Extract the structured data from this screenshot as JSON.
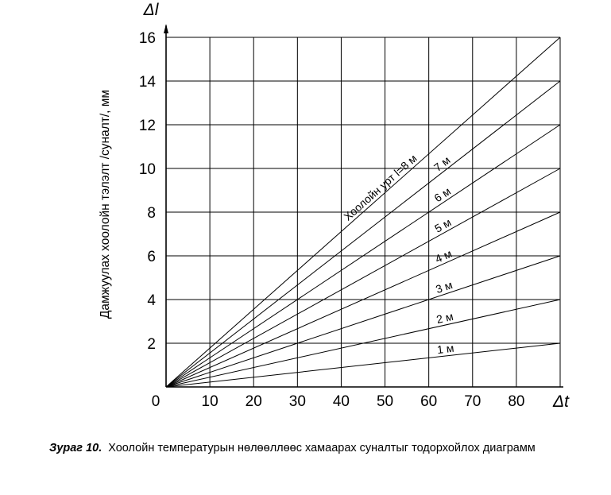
{
  "chart_data": {
    "type": "line",
    "title": "",
    "ylabel": "Дамжуулах хоолойн тэлэлт /суналт/, мм",
    "y_symbol": "Δl",
    "x_symbol": "Δt",
    "origin_label": "0",
    "xlim": [
      0,
      90
    ],
    "ylim": [
      0,
      16
    ],
    "x_ticks": [
      10,
      20,
      30,
      40,
      50,
      60,
      70,
      80
    ],
    "y_ticks": [
      2,
      4,
      6,
      8,
      10,
      12,
      14,
      16
    ],
    "grid": true,
    "legend": "none",
    "series": [
      {
        "label": "1 м",
        "x": [
          0,
          90
        ],
        "y": [
          0,
          2
        ]
      },
      {
        "label": "2 м",
        "x": [
          0,
          90
        ],
        "y": [
          0,
          4
        ]
      },
      {
        "label": "3 м",
        "x": [
          0,
          90
        ],
        "y": [
          0,
          6
        ]
      },
      {
        "label": "4 м",
        "x": [
          0,
          90
        ],
        "y": [
          0,
          8
        ]
      },
      {
        "label": "5 м",
        "x": [
          0,
          90
        ],
        "y": [
          0,
          10
        ]
      },
      {
        "label": "6 м",
        "x": [
          0,
          90
        ],
        "y": [
          0,
          12
        ]
      },
      {
        "label": "7 м",
        "x": [
          0,
          90
        ],
        "y": [
          0,
          14
        ]
      },
      {
        "label": "Хоолойн урт l=8 м",
        "x": [
          0,
          90
        ],
        "y": [
          0,
          16
        ]
      }
    ]
  },
  "caption": {
    "figure_label": "Зураг 10.",
    "text": "Хоолойн температурын нөлөөллөөс хамаарах суналтыг тодорхойлох диаграмм"
  }
}
